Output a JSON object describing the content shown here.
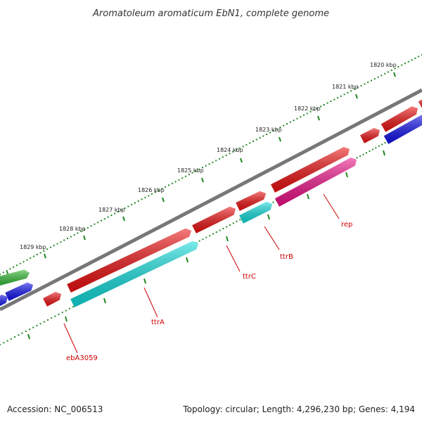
{
  "title": "Aromatoleum aromaticum EbN1, complete genome",
  "scale_labels": [
    "1820 kbp",
    "1821 kbp",
    "1822 kbp",
    "1823 kbp",
    "1824 kbp",
    "1825 kbp",
    "1826 kbp",
    "1827 kbp",
    "1828 kbp",
    "1829 kbp"
  ],
  "gene_labels": {
    "ebA3059": "ebA3059",
    "ttrA": "ttrA",
    "ttrC": "ttrC",
    "ttrB": "ttrB",
    "rep": "rep"
  },
  "accession": "Accession: NC_006513",
  "stats": "Topology: circular; Length: 4,296,230 bp; Genes: 4,194",
  "colors": {
    "backbone": "#777777",
    "ticks": "#228822",
    "cds": "#ee1111",
    "rna": "#11dddd",
    "rep": "#ee1188",
    "green": "#33bb33",
    "blue": "#1111ee",
    "label": "#cc0000"
  }
}
